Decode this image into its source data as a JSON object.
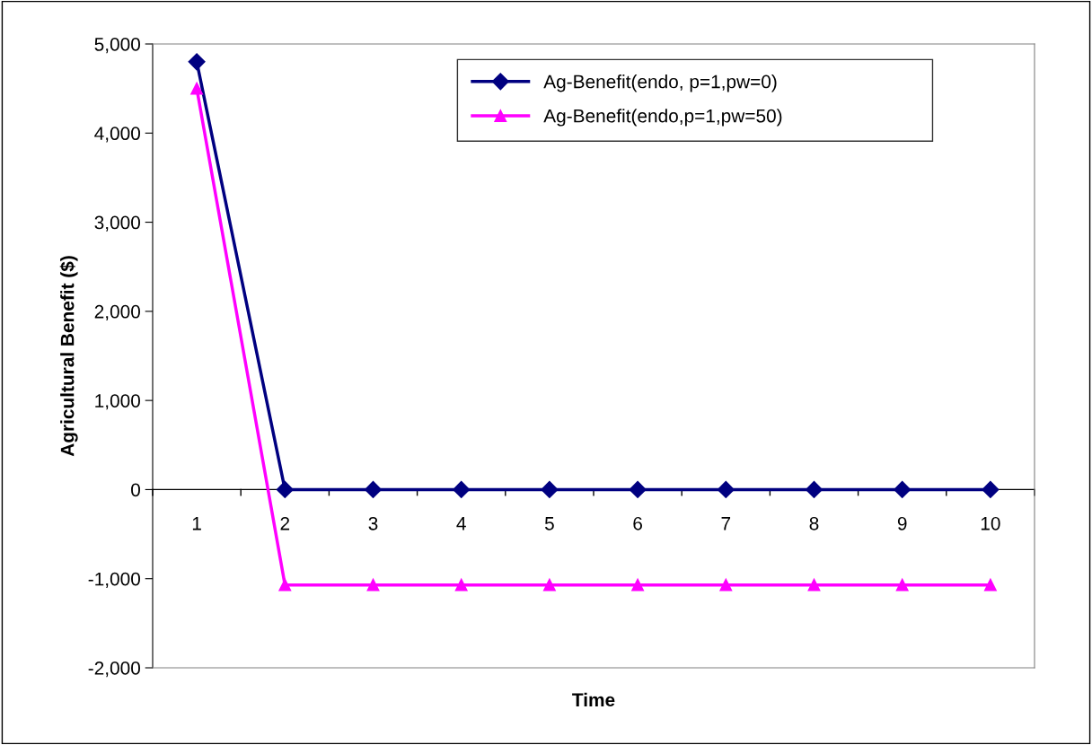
{
  "chart_data": {
    "type": "line",
    "xlabel": "Time",
    "ylabel": "Agricultural Benefit ($)",
    "categories": [
      "1",
      "2",
      "3",
      "4",
      "5",
      "6",
      "7",
      "8",
      "9",
      "10"
    ],
    "series": [
      {
        "name": "Ag-Benefit(endo, p=1,pw=0)",
        "color": "#000080",
        "marker": "diamond",
        "values": [
          4800,
          0,
          0,
          0,
          0,
          0,
          0,
          0,
          0,
          0
        ]
      },
      {
        "name": "Ag-Benefit(endo,p=1,pw=50)",
        "color": "#ff00ff",
        "marker": "triangle",
        "values": [
          4500,
          -1070,
          -1070,
          -1070,
          -1070,
          -1070,
          -1070,
          -1070,
          -1070,
          -1070
        ]
      }
    ],
    "ylim": [
      -2000,
      5000
    ],
    "yticks": [
      {
        "value": -2000,
        "label": "-2,000"
      },
      {
        "value": -1000,
        "label": "-1,000"
      },
      {
        "value": 0,
        "label": "0"
      },
      {
        "value": 1000,
        "label": "1,000"
      },
      {
        "value": 2000,
        "label": "2,000"
      },
      {
        "value": 3000,
        "label": "3,000"
      },
      {
        "value": 4000,
        "label": "4,000"
      },
      {
        "value": 5000,
        "label": "5,000"
      }
    ],
    "grid": false,
    "legend": "top right",
    "line_style": "solid"
  }
}
